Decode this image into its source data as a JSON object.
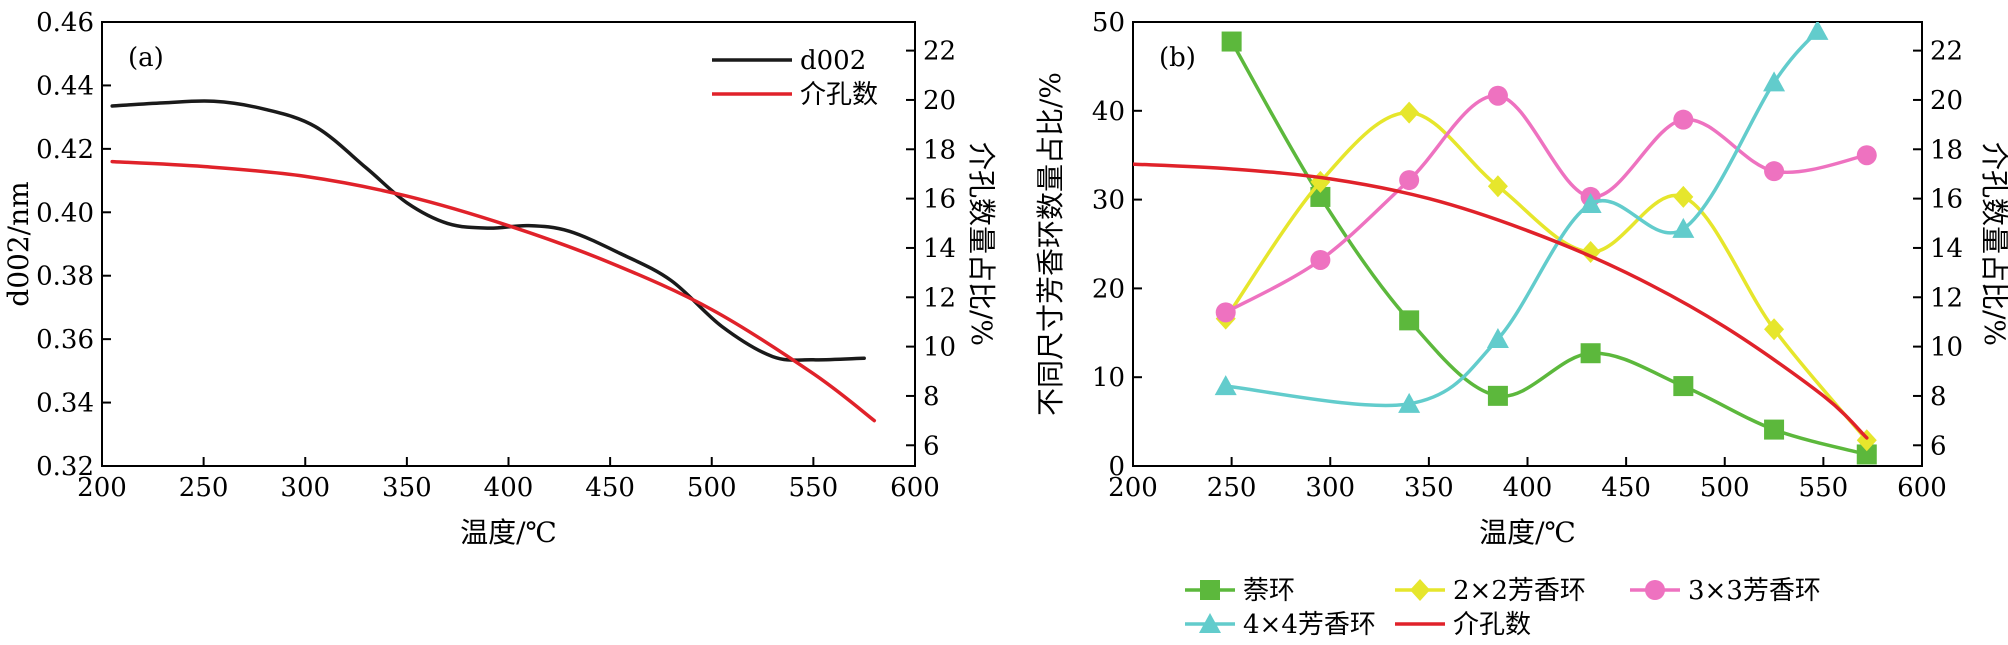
{
  "chart_data": [
    {
      "type": "line",
      "panel_label": "(a)",
      "xlabel": "温度/℃",
      "ylabel_left": "d002/nm",
      "ylabel_right": "介孔数量占比/%",
      "xlim": [
        200,
        600
      ],
      "xticks": [
        200,
        250,
        300,
        350,
        400,
        450,
        500,
        550,
        600
      ],
      "ylim_left": [
        0.32,
        0.46
      ],
      "yticks_left": [
        "0.32",
        "0.34",
        "0.36",
        "0.38",
        "0.40",
        "0.42",
        "0.44",
        "0.46"
      ],
      "ylim_right": [
        5.16,
        23.16
      ],
      "yticks_right": [
        6,
        8,
        10,
        12,
        14,
        16,
        18,
        20,
        22
      ],
      "grid": false,
      "legend_position": "top-right",
      "series": [
        {
          "name": "d002",
          "axis": "left",
          "color": "#1a1a1a",
          "x": [
            205,
            230,
            255,
            280,
            305,
            330,
            350,
            370,
            390,
            410,
            430,
            455,
            480,
            505,
            530,
            550,
            575
          ],
          "y": [
            0.4335,
            0.4345,
            0.435,
            0.4325,
            0.427,
            0.414,
            0.403,
            0.3965,
            0.395,
            0.3958,
            0.394,
            0.387,
            0.3785,
            0.364,
            0.3545,
            0.3535,
            0.354
          ]
        },
        {
          "name": "介孔数",
          "axis": "right",
          "color": "#e0222a",
          "x": [
            205,
            250,
            300,
            350,
            400,
            450,
            500,
            550,
            580
          ],
          "y": [
            17.5,
            17.3,
            16.9,
            16.1,
            14.9,
            13.4,
            11.5,
            8.9,
            7.0
          ]
        }
      ]
    },
    {
      "type": "line",
      "panel_label": "(b)",
      "xlabel": "温度/℃",
      "ylabel_left": "不同尺寸芳香环数量占比/%",
      "ylabel_right": "介孔数量占比/%",
      "xlim": [
        200,
        600
      ],
      "xticks": [
        200,
        250,
        300,
        350,
        400,
        450,
        500,
        550,
        600
      ],
      "ylim_left": [
        0,
        50
      ],
      "yticks_left": [
        0,
        10,
        20,
        30,
        40,
        50
      ],
      "ylim_right": [
        5.16,
        23.16
      ],
      "yticks_right": [
        6,
        8,
        10,
        12,
        14,
        16,
        18,
        20,
        22
      ],
      "grid": false,
      "legend_position": "bottom",
      "series": [
        {
          "name": "萘环",
          "marker": "square",
          "axis": "left",
          "color": "#5cb83c",
          "x": [
            250,
            295,
            340,
            385,
            432,
            479,
            525,
            572
          ],
          "y": [
            47.8,
            30.3,
            16.4,
            7.9,
            12.7,
            9.0,
            4.1,
            1.3
          ]
        },
        {
          "name": "2×2芳香环",
          "marker": "diamond",
          "axis": "left",
          "color": "#e6e62c",
          "x": [
            247,
            295,
            340,
            385,
            432,
            479,
            525,
            572
          ],
          "y": [
            16.6,
            32.0,
            39.8,
            31.5,
            24.1,
            30.3,
            15.4,
            2.9
          ]
        },
        {
          "name": "3×3芳香环",
          "marker": "circle",
          "axis": "left",
          "color": "#ee72c0",
          "x": [
            247,
            295,
            340,
            385,
            432,
            479,
            525,
            572
          ],
          "y": [
            17.3,
            23.2,
            32.2,
            41.7,
            30.3,
            39.0,
            33.2,
            35.0
          ]
        },
        {
          "name": "4×4芳香环",
          "marker": "triangle",
          "axis": "left",
          "color": "#62cccc",
          "x": [
            247,
            340,
            385,
            432,
            479,
            525,
            547
          ],
          "y": [
            9.0,
            7.0,
            14.3,
            29.5,
            26.7,
            43.2,
            49.0
          ]
        },
        {
          "name": "介孔数",
          "marker": "none",
          "axis": "right",
          "color": "#e0222a",
          "x": [
            200,
            250,
            300,
            350,
            400,
            450,
            500,
            550,
            572
          ],
          "y": [
            17.4,
            17.2,
            16.8,
            16.0,
            14.7,
            13.0,
            10.8,
            8.0,
            6.3
          ]
        }
      ]
    }
  ]
}
